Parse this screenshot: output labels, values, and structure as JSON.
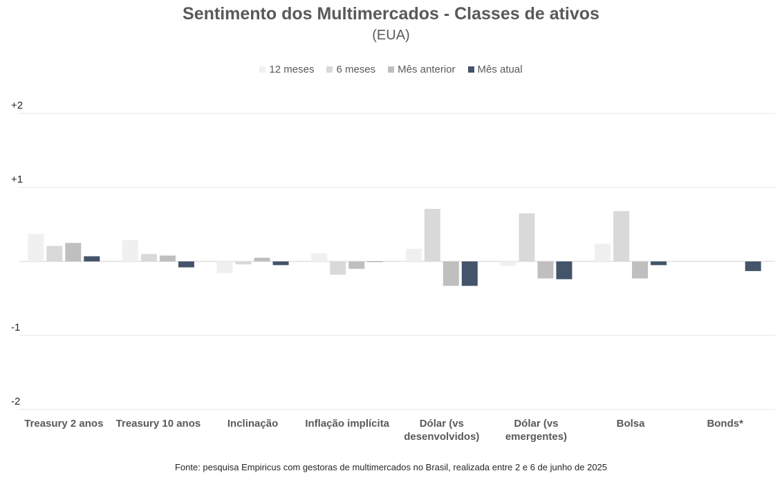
{
  "chart_data": {
    "type": "bar",
    "title": "Sentimento dos Multimercados - Classes de ativos",
    "subtitle": "(EUA)",
    "categories": [
      "Treasury 2 anos",
      "Treasury 10 anos",
      "Inclinação",
      "Inflação implícita",
      "Dólar (vs desenvolvidos)",
      "Dólar (vs emergentes)",
      "Bolsa",
      "Bonds*"
    ],
    "category_lines": [
      [
        "Treasury 2 anos"
      ],
      [
        "Treasury 10 anos"
      ],
      [
        "Inclinação"
      ],
      [
        "Inflação implícita"
      ],
      [
        "Dólar (vs",
        "desenvolvidos)"
      ],
      [
        "Dólar (vs",
        "emergentes)"
      ],
      [
        "Bolsa"
      ],
      [
        "Bonds*"
      ]
    ],
    "series": [
      {
        "name": "12 meses",
        "color": "#f0f0f0",
        "values": [
          0.37,
          0.29,
          -0.16,
          0.11,
          0.17,
          -0.06,
          0.24,
          null
        ]
      },
      {
        "name": "6 meses",
        "color": "#d9d9d9",
        "values": [
          0.21,
          0.1,
          -0.04,
          -0.18,
          0.71,
          0.65,
          0.68,
          null
        ]
      },
      {
        "name": "Mês anterior",
        "color": "#bfbfbf",
        "values": [
          0.25,
          0.08,
          0.05,
          -0.1,
          -0.33,
          -0.23,
          -0.23,
          null
        ]
      },
      {
        "name": "Mês atual",
        "color": "#44546a",
        "values": [
          0.07,
          -0.08,
          -0.05,
          0.0,
          -0.33,
          -0.24,
          -0.05,
          -0.13
        ]
      }
    ],
    "y_ticks": [
      {
        "value": 2,
        "label": "+2"
      },
      {
        "value": 1,
        "label": "+1"
      },
      {
        "value": -1,
        "label": "-1"
      },
      {
        "value": -2,
        "label": "-2"
      }
    ],
    "ylim": [
      -2,
      2
    ],
    "grid": true,
    "legend_position": "top-center",
    "xlabel": "",
    "ylabel": ""
  },
  "footer": "Fonte: pesquisa Empiricus com gestoras de multimercados no Brasil, realizada entre 2 e 6 de junho de 2025"
}
